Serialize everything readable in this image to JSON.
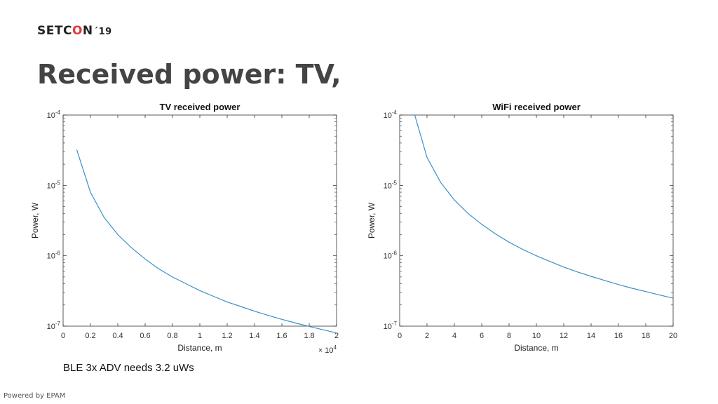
{
  "slide": {
    "logo": {
      "brand_pre": "SETC",
      "brand_o": "O",
      "brand_post": "N",
      "version": "´19"
    },
    "title": "Received power: TV,",
    "note": "BLE 3x ADV needs 3.2 uWs",
    "footer": "Powered by EPAM"
  },
  "chart_data": [
    {
      "type": "line",
      "title": "TV received power",
      "xlabel": "Distance, m",
      "ylabel": "Power, W",
      "x_multiplier": "× 10^4",
      "yscale": "log",
      "xlim": [
        0,
        2
      ],
      "ylim": [
        1e-07,
        0.0001
      ],
      "xticks": [
        "0",
        "0.2",
        "0.4",
        "0.6",
        "0.8",
        "1",
        "1.2",
        "1.4",
        "1.6",
        "1.8",
        "2"
      ],
      "yticks": [
        {
          "base": "10",
          "exp": "-7"
        },
        {
          "base": "10",
          "exp": "-6"
        },
        {
          "base": "10",
          "exp": "-5"
        },
        {
          "base": "10",
          "exp": "-4"
        }
      ],
      "grid": false,
      "color": "#3a8fc7",
      "series": [
        {
          "x": [
            0.1,
            0.2,
            0.3,
            0.4,
            0.5,
            0.6,
            0.7,
            0.8,
            0.9,
            1.0,
            1.1,
            1.2,
            1.3,
            1.4,
            1.5,
            1.6,
            1.7,
            1.8,
            1.9,
            2.0
          ],
          "y": [
            3.2e-05,
            8e-06,
            3.5e-06,
            2e-06,
            1.3e-06,
            9e-07,
            6.5e-07,
            5e-07,
            4e-07,
            3.2e-07,
            2.65e-07,
            2.2e-07,
            1.9e-07,
            1.63e-07,
            1.42e-07,
            1.25e-07,
            1.11e-07,
            9.9e-08,
            8.9e-08,
            8e-08
          ]
        }
      ]
    },
    {
      "type": "line",
      "title": "WiFi received power",
      "xlabel": "Distance, m",
      "ylabel": "Power, W",
      "yscale": "log",
      "xlim": [
        0,
        20
      ],
      "ylim": [
        1e-07,
        0.0001
      ],
      "xticks": [
        "0",
        "2",
        "4",
        "6",
        "8",
        "10",
        "12",
        "14",
        "16",
        "18",
        "20"
      ],
      "yticks": [
        {
          "base": "10",
          "exp": "-7"
        },
        {
          "base": "10",
          "exp": "-6"
        },
        {
          "base": "10",
          "exp": "-5"
        },
        {
          "base": "10",
          "exp": "-4"
        }
      ],
      "grid": false,
      "color": "#3a8fc7",
      "series": [
        {
          "x": [
            1.1,
            2,
            3,
            4,
            5,
            6,
            7,
            8,
            9,
            10,
            11,
            12,
            13,
            14,
            15,
            16,
            17,
            18,
            19,
            20
          ],
          "y": [
            0.0001,
            2.5e-05,
            1.1e-05,
            6.2e-06,
            4e-06,
            2.8e-06,
            2.05e-06,
            1.56e-06,
            1.23e-06,
            1e-06,
            8.3e-07,
            6.9e-07,
            5.9e-07,
            5.1e-07,
            4.45e-07,
            3.9e-07,
            3.45e-07,
            3.1e-07,
            2.77e-07,
            2.5e-07
          ]
        }
      ]
    }
  ]
}
